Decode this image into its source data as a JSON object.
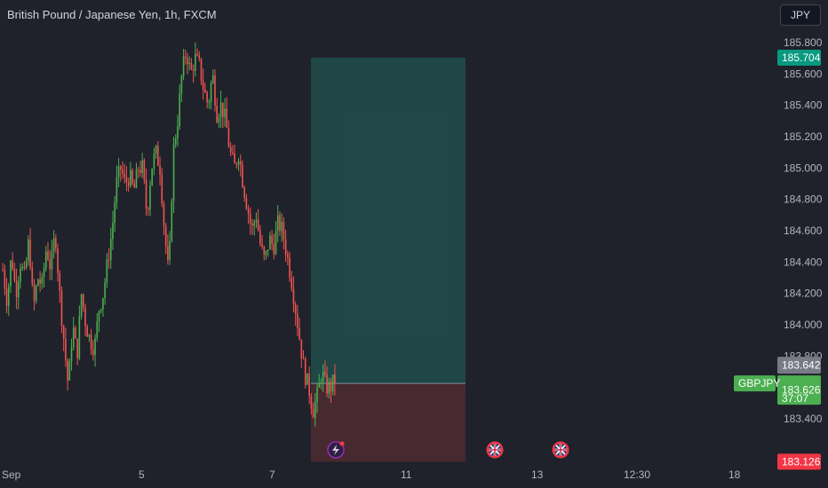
{
  "header": {
    "title": "British Pound / Japanese Yen, 1h, FXCM",
    "currency_button": "JPY"
  },
  "symbol": "GBPJPY",
  "colors": {
    "background": "#1f222b",
    "up": "#26a69a",
    "up_candle": "#4caf50",
    "down": "#ef5350",
    "profit_zone": "#1f4a47",
    "loss_zone": "#4a2a30",
    "last_price": "#4caf50",
    "target_badge": "#089981",
    "stop_badge": "#f23645",
    "ask_badge": "#787b86"
  },
  "price_axis": {
    "ticks": [
      "185.800",
      "185.600",
      "185.400",
      "185.200",
      "185.000",
      "184.800",
      "184.600",
      "184.400",
      "184.200",
      "184.000",
      "183.800",
      "183.400"
    ]
  },
  "time_axis": {
    "ticks": [
      "Sep",
      "5",
      "7",
      "11",
      "13",
      "12:30",
      "18"
    ]
  },
  "badges": {
    "target": "185.704",
    "ask": "183.642",
    "last": "183.626",
    "countdown": "37:07",
    "stop": "183.126"
  },
  "position": {
    "entry": 183.626,
    "target": 185.704,
    "stop": 183.126
  },
  "events": [
    {
      "icon": "lightning-icon",
      "type": "lightning"
    },
    {
      "icon": "uk-flag-icon",
      "type": "flag"
    },
    {
      "icon": "uk-flag-icon",
      "type": "flag"
    }
  ],
  "chart_data": {
    "type": "candlestick",
    "ylim": [
      183.1,
      185.85
    ],
    "path": [
      184.35,
      184.15,
      184.45,
      184.2,
      184.4,
      184.3,
      184.55,
      184.1,
      184.3,
      184.25,
      184.5,
      184.35,
      184.6,
      184.2,
      183.9,
      183.6,
      184.0,
      183.8,
      184.2,
      184.0,
      183.9,
      183.85,
      184.1,
      184.2,
      184.4,
      184.6,
      184.9,
      185.0,
      184.9,
      184.95,
      184.85,
      185.0,
      185.0,
      184.7,
      185.0,
      185.1,
      185.0,
      184.6,
      184.3,
      185.1,
      185.3,
      185.6,
      185.75,
      185.6,
      185.7,
      185.65,
      185.5,
      185.4,
      185.6,
      185.35,
      185.4,
      185.3,
      185.1,
      185.0,
      185.1,
      184.9,
      184.75,
      184.6,
      184.7,
      184.5,
      184.4,
      184.55,
      184.5,
      184.65,
      184.6,
      184.45,
      184.3,
      184.1,
      183.9,
      183.7,
      183.6,
      183.45,
      183.55,
      183.7,
      183.6,
      183.6,
      183.65
    ]
  }
}
